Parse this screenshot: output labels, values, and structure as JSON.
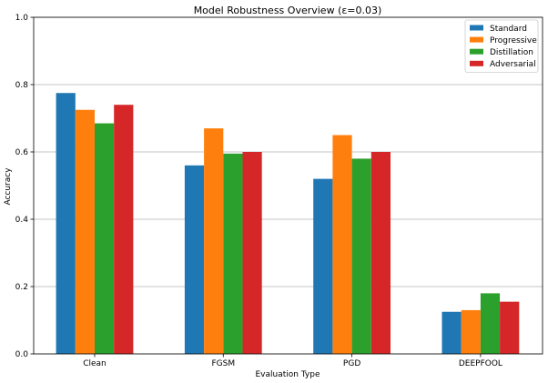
{
  "chart_data": {
    "type": "bar",
    "title": "Model Robustness Overview (ε=0.03)",
    "xlabel": "Evaluation Type",
    "ylabel": "Accuracy",
    "ylim": [
      0,
      1.0
    ],
    "yticks": [
      "0.0",
      "0.2",
      "0.4",
      "0.6",
      "0.8",
      "1.0"
    ],
    "grid": "horizontal",
    "legend_position": "top-right",
    "categories": [
      "Clean",
      "FGSM",
      "PGD",
      "DEEPFOOL"
    ],
    "series": [
      {
        "name": "Standard",
        "color": "#1f77b4",
        "values": [
          0.775,
          0.56,
          0.52,
          0.125
        ]
      },
      {
        "name": "Progressive",
        "color": "#ff7f0e",
        "values": [
          0.725,
          0.67,
          0.65,
          0.13
        ]
      },
      {
        "name": "Distillation",
        "color": "#2ca02c",
        "values": [
          0.685,
          0.595,
          0.58,
          0.18
        ]
      },
      {
        "name": "Adversarial",
        "color": "#d62728",
        "values": [
          0.74,
          0.6,
          0.6,
          0.155
        ]
      }
    ]
  }
}
